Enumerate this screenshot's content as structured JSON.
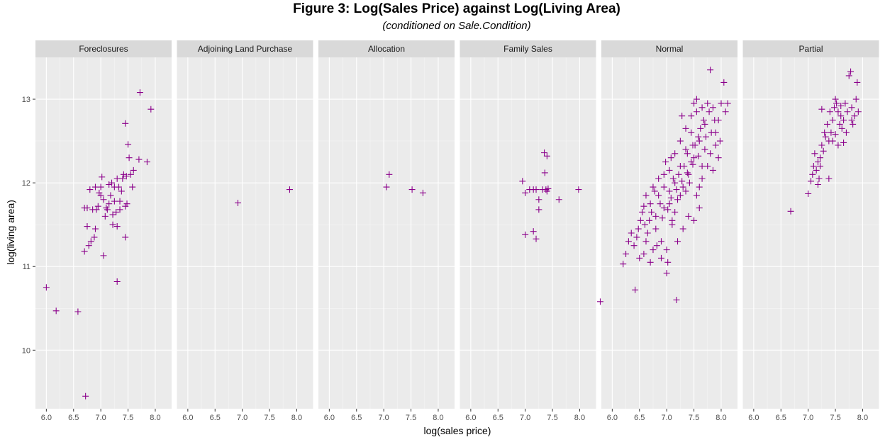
{
  "chart_data": {
    "type": "scatter",
    "title": "Figure 3: Log(Sales Price) against Log(Living Area)",
    "subtitle": "(conditioned on Sale.Condition)",
    "xlabel": "log(sales price)",
    "ylabel": "log(living area)",
    "xlim": [
      5.8,
      8.3
    ],
    "ylim": [
      9.3,
      13.5
    ],
    "x_ticks": [
      "6.0",
      "6.5",
      "7.0",
      "7.5",
      "8.0"
    ],
    "y_ticks": [
      "10",
      "11",
      "12",
      "13"
    ],
    "grid": true,
    "point_color": "#8B008B",
    "panel_bg": "#EBEBEB",
    "strip_bg": "#D9D9D9",
    "marker": "plus",
    "panels": [
      {
        "name": "Foreclosures",
        "points": [
          [
            6.0,
            10.75
          ],
          [
            6.18,
            10.47
          ],
          [
            6.58,
            10.46
          ],
          [
            6.72,
            9.45
          ],
          [
            6.7,
            11.7
          ],
          [
            6.75,
            11.7
          ],
          [
            6.8,
            11.92
          ],
          [
            6.85,
            11.68
          ],
          [
            6.9,
            11.95
          ],
          [
            6.92,
            11.68
          ],
          [
            6.97,
            11.88
          ],
          [
            7.0,
            11.85
          ],
          [
            7.02,
            12.07
          ],
          [
            7.05,
            11.8
          ],
          [
            7.1,
            11.7
          ],
          [
            7.12,
            11.68
          ],
          [
            7.15,
            11.75
          ],
          [
            7.2,
            12.0
          ],
          [
            7.22,
            11.62
          ],
          [
            7.25,
            11.95
          ],
          [
            7.28,
            11.65
          ],
          [
            7.3,
            12.05
          ],
          [
            7.33,
            11.95
          ],
          [
            7.35,
            11.78
          ],
          [
            7.38,
            11.9
          ],
          [
            7.4,
            12.05
          ],
          [
            7.42,
            12.1
          ],
          [
            7.45,
            11.72
          ],
          [
            7.47,
            12.08
          ],
          [
            7.5,
            12.46
          ],
          [
            7.52,
            12.3
          ],
          [
            7.55,
            12.1
          ],
          [
            7.58,
            11.95
          ],
          [
            7.6,
            12.15
          ],
          [
            7.45,
            12.71
          ],
          [
            7.72,
            13.08
          ],
          [
            7.92,
            12.88
          ],
          [
            7.7,
            12.28
          ],
          [
            7.85,
            12.25
          ],
          [
            6.75,
            11.48
          ],
          [
            6.78,
            11.25
          ],
          [
            6.7,
            11.18
          ],
          [
            6.88,
            11.35
          ],
          [
            6.9,
            11.45
          ],
          [
            7.05,
            11.13
          ],
          [
            7.22,
            11.5
          ],
          [
            7.3,
            11.48
          ],
          [
            7.45,
            11.35
          ],
          [
            7.3,
            10.82
          ],
          [
            6.95,
            11.72
          ],
          [
            7.08,
            11.6
          ],
          [
            7.0,
            11.95
          ],
          [
            7.18,
            11.85
          ],
          [
            7.48,
            11.75
          ],
          [
            7.35,
            11.68
          ],
          [
            6.82,
            11.3
          ],
          [
            7.15,
            11.98
          ],
          [
            7.25,
            11.78
          ]
        ]
      },
      {
        "name": "Adjoining Land Purchase",
        "points": [
          [
            6.92,
            11.76
          ],
          [
            7.87,
            11.92
          ]
        ]
      },
      {
        "name": "Allocation",
        "points": [
          [
            7.05,
            11.95
          ],
          [
            7.1,
            12.1
          ],
          [
            7.52,
            11.92
          ],
          [
            7.72,
            11.88
          ]
        ]
      },
      {
        "name": "Family Sales",
        "points": [
          [
            6.95,
            12.02
          ],
          [
            7.0,
            11.88
          ],
          [
            7.08,
            11.92
          ],
          [
            7.15,
            11.92
          ],
          [
            7.2,
            11.92
          ],
          [
            7.25,
            11.8
          ],
          [
            7.25,
            11.68
          ],
          [
            7.32,
            11.92
          ],
          [
            7.35,
            12.36
          ],
          [
            7.4,
            12.32
          ],
          [
            7.36,
            12.12
          ],
          [
            7.38,
            11.92
          ],
          [
            7.42,
            11.93
          ],
          [
            7.62,
            11.8
          ],
          [
            7.98,
            11.92
          ],
          [
            7.0,
            11.38
          ],
          [
            7.15,
            11.42
          ],
          [
            7.2,
            11.33
          ],
          [
            7.4,
            11.9
          ]
        ]
      },
      {
        "name": "Normal",
        "points": [
          [
            5.78,
            10.58
          ],
          [
            6.2,
            11.03
          ],
          [
            6.25,
            11.15
          ],
          [
            6.3,
            11.3
          ],
          [
            6.42,
            10.72
          ],
          [
            6.45,
            11.35
          ],
          [
            6.5,
            11.1
          ],
          [
            6.55,
            11.65
          ],
          [
            6.6,
            11.5
          ],
          [
            6.65,
            11.4
          ],
          [
            6.7,
            11.75
          ],
          [
            6.75,
            11.2
          ],
          [
            6.8,
            11.6
          ],
          [
            6.85,
            11.85
          ],
          [
            6.9,
            11.3
          ],
          [
            6.95,
            11.7
          ],
          [
            7.0,
            10.92
          ],
          [
            7.02,
            11.05
          ],
          [
            7.18,
            10.6
          ],
          [
            7.05,
            11.9
          ],
          [
            7.1,
            11.55
          ],
          [
            7.15,
            12.0
          ],
          [
            7.2,
            11.8
          ],
          [
            7.25,
            12.2
          ],
          [
            7.3,
            11.95
          ],
          [
            7.35,
            12.4
          ],
          [
            7.4,
            12.1
          ],
          [
            7.45,
            12.6
          ],
          [
            7.5,
            12.3
          ],
          [
            7.55,
            12.85
          ],
          [
            7.6,
            12.5
          ],
          [
            7.65,
            12.2
          ],
          [
            7.7,
            12.7
          ],
          [
            7.75,
            12.95
          ],
          [
            7.8,
            13.35
          ],
          [
            7.85,
            12.9
          ],
          [
            7.9,
            12.6
          ],
          [
            7.95,
            12.75
          ],
          [
            8.05,
            13.2
          ],
          [
            8.12,
            12.95
          ],
          [
            8.08,
            12.85
          ],
          [
            7.8,
            12.35
          ],
          [
            7.9,
            12.45
          ],
          [
            7.6,
            11.95
          ],
          [
            7.5,
            11.55
          ],
          [
            7.4,
            11.6
          ],
          [
            7.3,
            11.45
          ],
          [
            7.2,
            11.3
          ],
          [
            7.1,
            11.5
          ],
          [
            7.0,
            11.2
          ],
          [
            6.9,
            11.1
          ],
          [
            6.8,
            11.45
          ],
          [
            6.72,
            11.65
          ],
          [
            6.62,
            11.85
          ],
          [
            6.58,
            11.72
          ],
          [
            6.52,
            11.55
          ],
          [
            6.48,
            11.45
          ],
          [
            6.85,
            12.05
          ],
          [
            6.95,
            12.1
          ],
          [
            7.05,
            12.15
          ],
          [
            7.15,
            12.35
          ],
          [
            7.25,
            12.5
          ],
          [
            7.35,
            12.65
          ],
          [
            7.45,
            12.8
          ],
          [
            7.55,
            13.0
          ],
          [
            7.65,
            12.9
          ],
          [
            7.7,
            12.4
          ],
          [
            7.75,
            12.2
          ],
          [
            7.85,
            12.15
          ],
          [
            7.95,
            12.3
          ],
          [
            7.98,
            12.5
          ],
          [
            8.0,
            12.95
          ],
          [
            7.28,
            12.8
          ],
          [
            7.42,
            12.0
          ],
          [
            7.52,
            12.45
          ],
          [
            7.62,
            12.65
          ],
          [
            7.72,
            12.55
          ],
          [
            7.82,
            12.6
          ],
          [
            7.88,
            12.75
          ],
          [
            7.05,
            11.75
          ],
          [
            7.15,
            11.65
          ],
          [
            7.25,
            11.85
          ],
          [
            7.35,
            11.9
          ],
          [
            7.45,
            12.25
          ],
          [
            6.95,
            11.95
          ],
          [
            6.88,
            11.75
          ],
          [
            6.78,
            11.9
          ],
          [
            6.68,
            11.55
          ],
          [
            6.62,
            11.3
          ],
          [
            6.75,
            11.95
          ],
          [
            7.12,
            12.05
          ],
          [
            7.22,
            12.1
          ],
          [
            7.32,
            12.2
          ],
          [
            7.38,
            12.35
          ],
          [
            7.48,
            12.45
          ],
          [
            7.58,
            12.55
          ],
          [
            7.68,
            12.75
          ],
          [
            7.78,
            12.85
          ],
          [
            6.92,
            11.58
          ],
          [
            7.02,
            11.68
          ],
          [
            7.08,
            11.82
          ],
          [
            7.18,
            11.92
          ],
          [
            7.28,
            12.02
          ],
          [
            7.38,
            12.12
          ],
          [
            7.48,
            12.22
          ],
          [
            7.58,
            12.32
          ],
          [
            6.98,
            12.25
          ],
          [
            7.08,
            12.3
          ],
          [
            7.55,
            11.85
          ],
          [
            7.65,
            12.05
          ],
          [
            7.6,
            11.7
          ],
          [
            6.4,
            11.25
          ],
          [
            6.35,
            11.4
          ],
          [
            6.58,
            11.15
          ],
          [
            6.7,
            11.05
          ],
          [
            6.82,
            11.25
          ],
          [
            7.5,
            12.95
          ]
        ]
      },
      {
        "name": "Partial",
        "points": [
          [
            6.68,
            11.66
          ],
          [
            7.0,
            11.87
          ],
          [
            7.05,
            12.02
          ],
          [
            7.08,
            12.1
          ],
          [
            7.1,
            12.2
          ],
          [
            7.12,
            12.35
          ],
          [
            7.15,
            12.15
          ],
          [
            7.18,
            12.25
          ],
          [
            7.2,
            12.05
          ],
          [
            7.22,
            12.3
          ],
          [
            7.25,
            12.45
          ],
          [
            7.28,
            12.38
          ],
          [
            7.3,
            12.6
          ],
          [
            7.32,
            12.55
          ],
          [
            7.35,
            12.7
          ],
          [
            7.38,
            12.5
          ],
          [
            7.4,
            12.85
          ],
          [
            7.42,
            12.6
          ],
          [
            7.45,
            12.75
          ],
          [
            7.48,
            12.9
          ],
          [
            7.5,
            13.0
          ],
          [
            7.52,
            12.95
          ],
          [
            7.55,
            12.85
          ],
          [
            7.58,
            12.7
          ],
          [
            7.6,
            12.8
          ],
          [
            7.62,
            12.65
          ],
          [
            7.65,
            12.75
          ],
          [
            7.68,
            12.95
          ],
          [
            7.7,
            12.6
          ],
          [
            7.72,
            12.85
          ],
          [
            7.75,
            13.28
          ],
          [
            7.78,
            13.33
          ],
          [
            7.8,
            12.9
          ],
          [
            7.82,
            12.7
          ],
          [
            7.85,
            12.8
          ],
          [
            7.88,
            13.0
          ],
          [
            7.9,
            13.2
          ],
          [
            7.92,
            12.85
          ],
          [
            7.25,
            12.88
          ],
          [
            7.38,
            12.05
          ],
          [
            7.18,
            11.98
          ],
          [
            7.22,
            12.2
          ],
          [
            7.45,
            12.5
          ],
          [
            7.55,
            12.45
          ],
          [
            7.65,
            12.48
          ],
          [
            7.8,
            12.75
          ],
          [
            7.5,
            12.58
          ],
          [
            7.6,
            12.92
          ]
        ]
      }
    ]
  }
}
